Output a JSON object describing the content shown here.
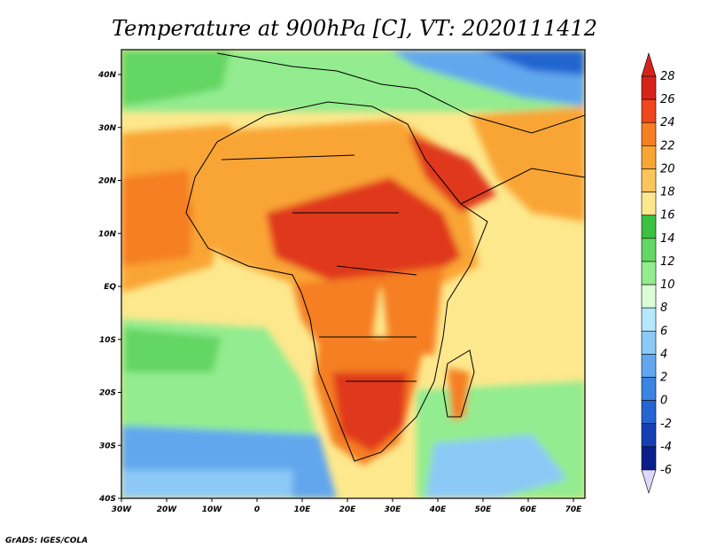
{
  "title": "Temperature at 900hPa [C], VT: 2020111412",
  "credit": "GrADS: IGES/COLA",
  "lon_labels": [
    "30W",
    "20W",
    "10W",
    "0",
    "10E",
    "20E",
    "30E",
    "40E",
    "50E",
    "60E",
    "70E"
  ],
  "lat_labels": [
    "40N",
    "30N",
    "20N",
    "10N",
    "EQ",
    "10S",
    "20S",
    "30S",
    "40S"
  ],
  "colorbar": {
    "labels": [
      "28",
      "26",
      "24",
      "22",
      "20",
      "18",
      "16",
      "14",
      "12",
      "10",
      "8",
      "6",
      "4",
      "2",
      "0",
      "-2",
      "-4",
      "-6"
    ],
    "colors": [
      "#d7241b",
      "#f0461e",
      "#f57f22",
      "#f9a534",
      "#fac55a",
      "#fde88d",
      "#3bc140",
      "#64d664",
      "#93ec8f",
      "#dcfcd8",
      "#b4e9fc",
      "#8cc9f6",
      "#62a7ee",
      "#3b84e0",
      "#2465d1",
      "#1440b4",
      "#0a1f8a"
    ],
    "over_color": "#d7241b",
    "under_color": "#dcd8fc"
  },
  "map_colors": {
    "land_hot": "#e0391c",
    "land_warm": "#f57f22",
    "land_mild": "#f9a534",
    "ocean_warm": "#fac55a",
    "ocean_mild": "#fde88d",
    "cool": "#93ec8f",
    "cold": "#62a7ee",
    "coast": "#000000"
  }
}
